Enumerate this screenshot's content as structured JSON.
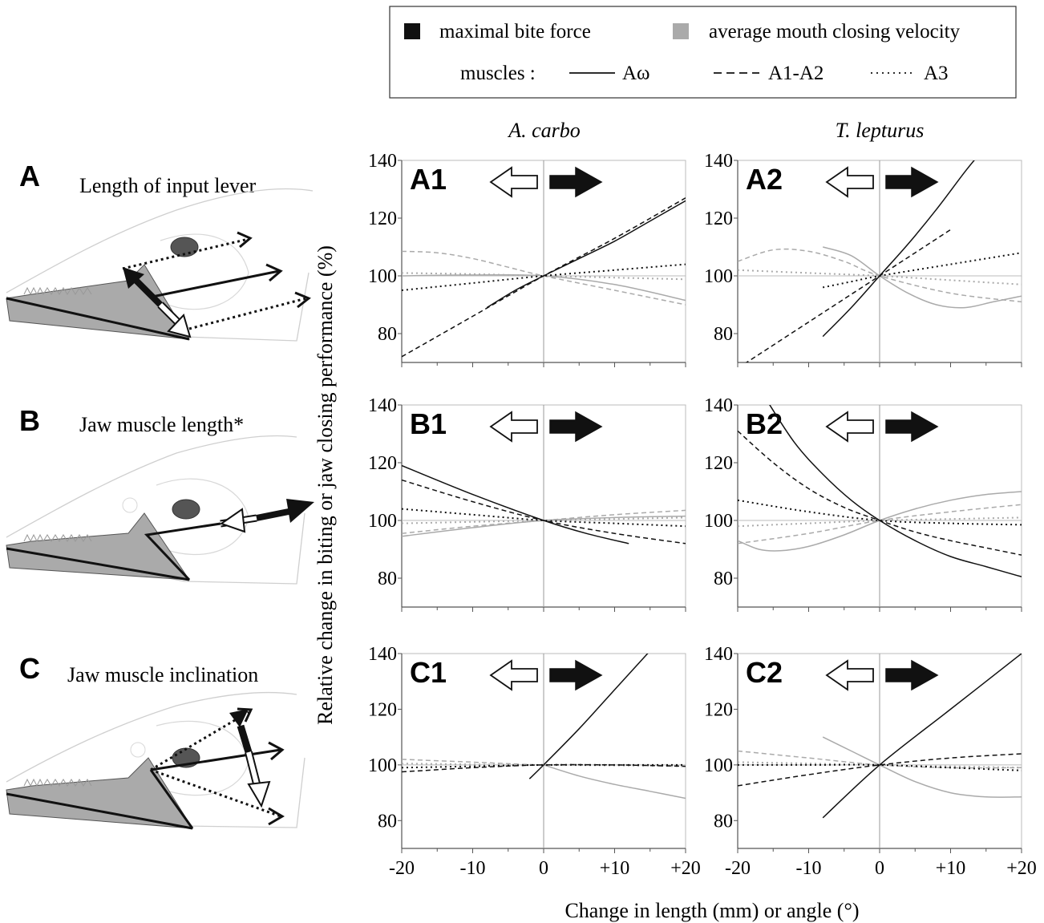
{
  "figure": {
    "rows": [
      {
        "letter": "A",
        "title": "Length of input lever"
      },
      {
        "letter": "B",
        "title": "Jaw muscle length*"
      },
      {
        "letter": "C",
        "title": "Jaw muscle inclination"
      }
    ],
    "columns": [
      "A. carbo",
      "T. lepturus"
    ],
    "ylabel": "Relative change in biting or jaw closing performance (%)",
    "xlabel": "Change in length (mm) or angle (°)"
  },
  "legend": {
    "force_label": "maximal bite force",
    "velocity_label": "average mouth closing velocity",
    "muscles_label": "muscles :",
    "muscle_names": [
      "Aω",
      "A1-A2",
      "A3"
    ],
    "colors": {
      "force": "#111111",
      "velocity": "#aaaaaa"
    }
  },
  "chart_data": [
    {
      "type": "line",
      "panel": "A1",
      "species": "A. carbo",
      "xlim": [
        -20,
        20
      ],
      "ylim": [
        70,
        140
      ],
      "x_ticks": [
        "-20",
        "-10",
        "0",
        "+10",
        "+20"
      ],
      "y_ticks": [
        "80",
        "100",
        "120",
        "140"
      ],
      "series": [
        {
          "name": "maximal bite force – Aω",
          "x": [
            -8,
            -4,
            0,
            5,
            10,
            15,
            20
          ],
          "y": [
            89,
            95,
            100,
            106,
            112,
            119,
            126
          ]
        },
        {
          "name": "maximal bite force – A1-A2",
          "x": [
            -20,
            -10,
            0,
            10,
            20
          ],
          "y": [
            72,
            86,
            100,
            113,
            127
          ]
        },
        {
          "name": "maximal bite force – A3",
          "x": [
            -20,
            -10,
            0,
            10,
            20
          ],
          "y": [
            95,
            97.5,
            100,
            102,
            104
          ]
        },
        {
          "name": "average mouth closing velocity – Aω",
          "x": [
            -20,
            -10,
            0,
            10,
            20
          ],
          "y": [
            100,
            100.3,
            100,
            97,
            91.5
          ]
        },
        {
          "name": "average mouth closing velocity – A1-A2",
          "x": [
            -20,
            -15,
            -10,
            -5,
            0,
            10,
            20
          ],
          "y": [
            108.5,
            108,
            106,
            103,
            100,
            95,
            90
          ]
        },
        {
          "name": "average mouth closing velocity – A3",
          "x": [
            -20,
            -10,
            0,
            10,
            20
          ],
          "y": [
            101,
            100.6,
            100,
            99.4,
            98.8
          ]
        }
      ]
    },
    {
      "type": "line",
      "panel": "A2",
      "species": "T. lepturus",
      "xlim": [
        -20,
        20
      ],
      "ylim": [
        70,
        140
      ],
      "x_ticks": [
        "-20",
        "-10",
        "0",
        "+10",
        "+20"
      ],
      "y_ticks": [
        "80",
        "100",
        "120",
        "140"
      ],
      "series": [
        {
          "name": "maximal bite force – Aω",
          "x": [
            -8,
            -4,
            0,
            4,
            8,
            12,
            14
          ],
          "y": [
            79,
            89,
            100,
            111,
            123,
            136,
            142
          ]
        },
        {
          "name": "maximal bite force – A1-A2",
          "x": [
            -20,
            -10,
            0,
            5,
            10
          ],
          "y": [
            68,
            84,
            100,
            108,
            116
          ]
        },
        {
          "name": "maximal bite force – A3",
          "x": [
            -8,
            -4,
            0,
            10,
            20
          ],
          "y": [
            96,
            98,
            100,
            104,
            108
          ]
        },
        {
          "name": "average mouth closing velocity – Aω",
          "x": [
            -8,
            -4,
            0,
            4,
            8,
            12,
            16,
            20
          ],
          "y": [
            110,
            107,
            100,
            94,
            90,
            89,
            91,
            93
          ]
        },
        {
          "name": "average mouth closing velocity – A1-A2",
          "x": [
            -20,
            -15,
            -10,
            -5,
            0,
            10,
            20
          ],
          "y": [
            105,
            109,
            108.5,
            105,
            100,
            94,
            91
          ]
        },
        {
          "name": "average mouth closing velocity – A3",
          "x": [
            -20,
            -10,
            0,
            10,
            20
          ],
          "y": [
            102,
            101,
            100,
            98.5,
            97
          ]
        }
      ]
    },
    {
      "type": "line",
      "panel": "B1",
      "species": "A. carbo",
      "xlim": [
        -20,
        20
      ],
      "ylim": [
        70,
        140
      ],
      "x_ticks": [
        "-20",
        "-10",
        "0",
        "+10",
        "+20"
      ],
      "y_ticks": [
        "80",
        "100",
        "120",
        "140"
      ],
      "series": [
        {
          "name": "maximal bite force – Aω",
          "x": [
            -20,
            -10,
            0,
            6,
            12
          ],
          "y": [
            119,
            109,
            100,
            95.5,
            92
          ]
        },
        {
          "name": "maximal bite force – A1-A2",
          "x": [
            -20,
            -10,
            0,
            10,
            20
          ],
          "y": [
            114,
            106.5,
            100,
            95.5,
            92
          ]
        },
        {
          "name": "maximal bite force – A3",
          "x": [
            -20,
            -10,
            0,
            10,
            20
          ],
          "y": [
            104,
            102,
            100,
            99,
            98
          ]
        },
        {
          "name": "average mouth closing velocity – Aω",
          "x": [
            -20,
            -10,
            0,
            10,
            20
          ],
          "y": [
            94.5,
            97.5,
            100,
            101,
            101.5
          ]
        },
        {
          "name": "average mouth closing velocity – A1-A2",
          "x": [
            -20,
            -10,
            0,
            10,
            20
          ],
          "y": [
            95.5,
            98,
            100,
            102,
            103.5
          ]
        },
        {
          "name": "average mouth closing velocity – A3",
          "x": [
            -20,
            -10,
            0,
            10,
            20
          ],
          "y": [
            99,
            99.5,
            100,
            100.5,
            101
          ]
        }
      ]
    },
    {
      "type": "line",
      "panel": "B2",
      "species": "T. lepturus",
      "xlim": [
        -20,
        20
      ],
      "ylim": [
        70,
        140
      ],
      "x_ticks": [
        "-20",
        "-10",
        "0",
        "+10",
        "+20"
      ],
      "y_ticks": [
        "80",
        "100",
        "120",
        "140"
      ],
      "series": [
        {
          "name": "maximal bite force – Aω",
          "x": [
            -16,
            -12,
            -8,
            -4,
            0,
            5,
            10,
            15,
            20
          ],
          "y": [
            142,
            127,
            116,
            107,
            100,
            93,
            87.5,
            84,
            80.5
          ]
        },
        {
          "name": "maximal bite force – A1-A2",
          "x": [
            -20,
            -15,
            -10,
            -5,
            0,
            5,
            10,
            15,
            20
          ],
          "y": [
            131,
            120,
            111,
            104.5,
            100,
            96,
            93,
            90.5,
            88
          ]
        },
        {
          "name": "maximal bite force – A3",
          "x": [
            -20,
            -10,
            0,
            10,
            20
          ],
          "y": [
            107,
            103,
            100,
            99,
            98.5
          ]
        },
        {
          "name": "average mouth closing velocity – Aω",
          "x": [
            -20,
            -17,
            -14,
            -10,
            -5,
            0,
            5,
            10,
            15,
            20
          ],
          "y": [
            93,
            90,
            89.5,
            91,
            95,
            100,
            104,
            107,
            109,
            110
          ]
        },
        {
          "name": "average mouth closing velocity – A1-A2",
          "x": [
            -20,
            -10,
            0,
            10,
            20
          ],
          "y": [
            92,
            95.5,
            100,
            103,
            105.5
          ]
        },
        {
          "name": "average mouth closing velocity – A3",
          "x": [
            -20,
            -10,
            0,
            10,
            20
          ],
          "y": [
            98,
            99,
            100,
            100.5,
            101
          ]
        }
      ]
    },
    {
      "type": "line",
      "panel": "C1",
      "species": "A. carbo",
      "xlim": [
        -20,
        20
      ],
      "ylim": [
        70,
        140
      ],
      "x_ticks": [
        "-20",
        "-10",
        "0",
        "+10",
        "+20"
      ],
      "y_ticks": [
        "80",
        "100",
        "120",
        "140"
      ],
      "series": [
        {
          "name": "maximal bite force – Aω",
          "x": [
            -2,
            0,
            5,
            10,
            15
          ],
          "y": [
            95,
            100,
            113,
            127,
            141
          ]
        },
        {
          "name": "maximal bite force – A1-A2",
          "x": [
            -20,
            -10,
            0,
            10,
            20
          ],
          "y": [
            97.5,
            99,
            100,
            100,
            99.5
          ]
        },
        {
          "name": "maximal bite force – A3",
          "x": [
            -20,
            -10,
            0,
            10,
            20
          ],
          "y": [
            99,
            99.5,
            100,
            100,
            100
          ]
        },
        {
          "name": "average mouth closing velocity – Aω",
          "x": [
            0,
            5,
            10,
            15,
            20
          ],
          "y": [
            100,
            96,
            93,
            90.5,
            88
          ]
        },
        {
          "name": "average mouth closing velocity – A1-A2",
          "x": [
            -20,
            -10,
            0,
            10,
            20
          ],
          "y": [
            102,
            101,
            100,
            100,
            99.5
          ]
        },
        {
          "name": "average mouth closing velocity – A3",
          "x": [
            -20,
            -10,
            0,
            10,
            20
          ],
          "y": [
            100.5,
            100.2,
            100,
            99.8,
            99.5
          ]
        }
      ]
    },
    {
      "type": "line",
      "panel": "C2",
      "species": "T. lepturus",
      "xlim": [
        -20,
        20
      ],
      "ylim": [
        70,
        140
      ],
      "x_ticks": [
        "-20",
        "-10",
        "0",
        "+10",
        "+20"
      ],
      "y_ticks": [
        "80",
        "100",
        "120",
        "140"
      ],
      "series": [
        {
          "name": "maximal bite force – Aω",
          "x": [
            -8,
            0,
            10,
            20
          ],
          "y": [
            81,
            100,
            120,
            140
          ]
        },
        {
          "name": "maximal bite force – A1-A2",
          "x": [
            -20,
            -10,
            0,
            10,
            20
          ],
          "y": [
            92.5,
            96.5,
            100,
            102.5,
            104
          ]
        },
        {
          "name": "maximal bite force – A3",
          "x": [
            -20,
            -10,
            0,
            10,
            20
          ],
          "y": [
            100,
            100,
            100,
            99,
            98
          ]
        },
        {
          "name": "average mouth closing velocity – Aω",
          "x": [
            -8,
            -4,
            0,
            5,
            10,
            15,
            20
          ],
          "y": [
            110,
            105,
            100,
            94,
            90,
            88.5,
            88.5
          ]
        },
        {
          "name": "average mouth closing velocity – A1-A2",
          "x": [
            -20,
            -10,
            0,
            10,
            20
          ],
          "y": [
            105,
            102.5,
            100,
            99,
            99
          ]
        },
        {
          "name": "average mouth closing velocity – A3",
          "x": [
            -20,
            -10,
            0,
            10,
            20
          ],
          "y": [
            101,
            100.5,
            100,
            99.5,
            99
          ]
        }
      ]
    }
  ]
}
